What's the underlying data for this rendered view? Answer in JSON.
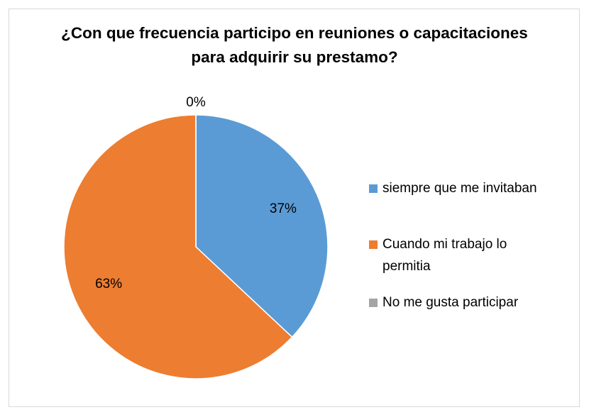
{
  "chart_data": {
    "type": "pie",
    "title": "¿Con que frecuencia participo en reuniones o capacitaciones para adquirir su prestamo?",
    "categories": [
      "siempre que me invitaban",
      "Cuando mi trabajo lo permitia",
      "No me gusta participar"
    ],
    "values": [
      37,
      63,
      0
    ],
    "value_labels": [
      "37%",
      "63%",
      "0%"
    ],
    "colors": [
      "#5b9bd5",
      "#ed7d31",
      "#a5a5a5"
    ],
    "legend": "right"
  }
}
